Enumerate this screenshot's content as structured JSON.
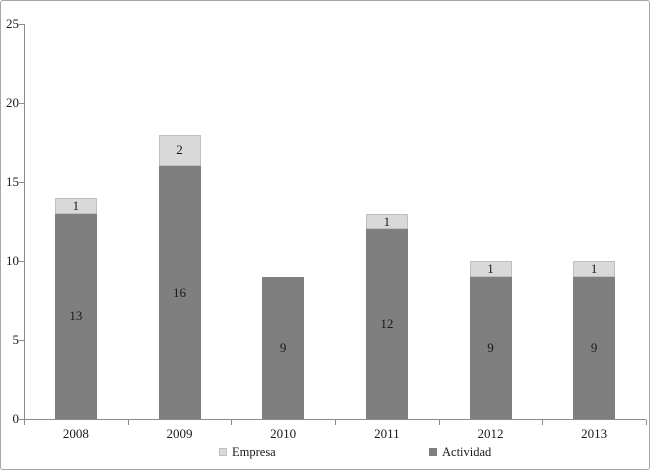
{
  "chart_data": {
    "type": "bar",
    "stacked": true,
    "title": "",
    "xlabel": "",
    "ylabel": "",
    "categories": [
      "2008",
      "2009",
      "2010",
      "2011",
      "2012",
      "2013"
    ],
    "series": [
      {
        "name": "Actividad",
        "color": "#7f7f7f",
        "border": "#7f7f7f",
        "values": [
          13,
          16,
          9,
          12,
          9,
          9
        ]
      },
      {
        "name": "Empresa",
        "color": "#d9d9d9",
        "border": "#bfbfbf",
        "values": [
          1,
          2,
          0,
          1,
          1,
          1
        ]
      }
    ],
    "ylim": [
      0,
      25
    ],
    "yticks": [
      0,
      5,
      10,
      15,
      20,
      25
    ],
    "grid": false,
    "data_labels": true,
    "legend_position": "bottom",
    "legend": [
      {
        "label": "Empresa",
        "color": "#d9d9d9",
        "border": "#bfbfbf"
      },
      {
        "label": "Actividad",
        "color": "#7f7f7f",
        "border": "#7f7f7f"
      }
    ]
  },
  "colors": {
    "axis": "#8c8c8c",
    "text": "#1a1a1a",
    "frame_border": "#a6a6a6",
    "background": "#ffffff"
  }
}
